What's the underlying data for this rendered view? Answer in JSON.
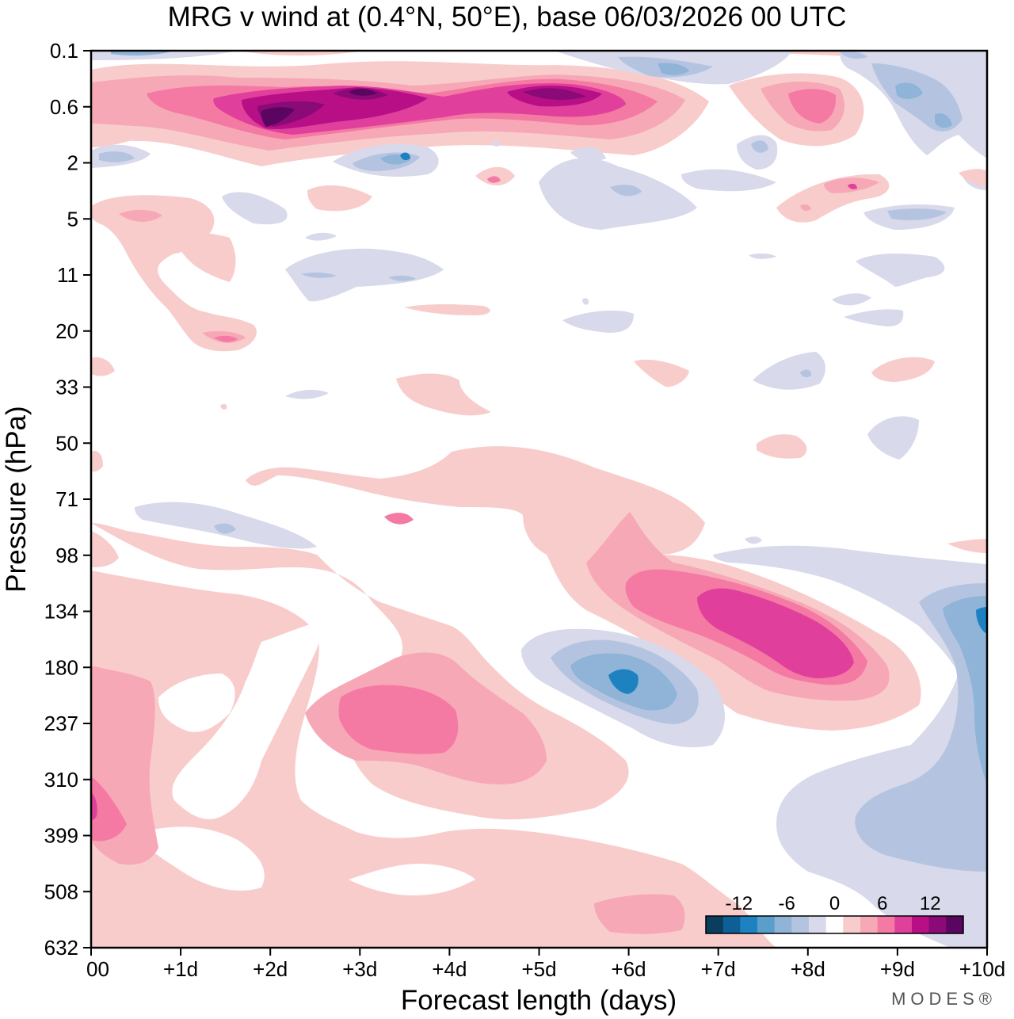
{
  "chart_data": {
    "type": "heatmap",
    "title": "MRG v wind at (0.4°N, 50°E),  base 06/03/2026  00 UTC",
    "xlabel": "Forecast length (days)",
    "ylabel": "Pressure (hPa)",
    "x_ticks": [
      "00",
      "+1d",
      "+2d",
      "+3d",
      "+4d",
      "+5d",
      "+6d",
      "+7d",
      "+8d",
      "+9d",
      "+10d"
    ],
    "y_ticks": [
      "0.1",
      "0.6",
      "2",
      "5",
      "11",
      "20",
      "33",
      "50",
      "71",
      "98",
      "134",
      "180",
      "237",
      "310",
      "399",
      "508",
      "632"
    ],
    "xlim_days": [
      0,
      10
    ],
    "colorbar": {
      "levels": [
        -14,
        -12,
        -10,
        -8,
        -6,
        -4,
        -2,
        2,
        4,
        6,
        8,
        10,
        12,
        14
      ],
      "tick_labels": [
        "-12",
        "-6",
        "0",
        "6",
        "12"
      ],
      "tick_values": [
        -12,
        -6,
        0,
        6,
        12
      ],
      "colors": [
        "#0b3d5e",
        "#0d5f96",
        "#1f82c0",
        "#5a9fcc",
        "#8fb4d8",
        "#b4c4e0",
        "#d8d9ea",
        "#ffffff",
        "#f9cccc",
        "#f7a8b6",
        "#f47aa4",
        "#e0409c",
        "#b80f86",
        "#8a0a78",
        "#5a0560"
      ]
    },
    "features": [
      {
        "kind": "positive",
        "day": 3.5,
        "level": "0.6",
        "peak": 14
      },
      {
        "kind": "positive",
        "day": 5.0,
        "level": "0.6",
        "peak": 12
      },
      {
        "kind": "positive",
        "day": 8.0,
        "level": "0.6",
        "peak": 8
      },
      {
        "kind": "negative",
        "day": 9.5,
        "level": "0.6",
        "peak": -6
      },
      {
        "kind": "positive",
        "day": 7.5,
        "level": "134-180",
        "peak": 10
      },
      {
        "kind": "negative",
        "day": 6.0,
        "level": "180",
        "peak": -8
      },
      {
        "kind": "positive",
        "day": 3.5,
        "level": "237",
        "peak": 8
      },
      {
        "kind": "negative",
        "day": 9.8,
        "level": "134",
        "peak": -8
      },
      {
        "kind": "negative",
        "day": 9.6,
        "level": "399",
        "peak": -4
      }
    ]
  },
  "brand": "MODES®"
}
